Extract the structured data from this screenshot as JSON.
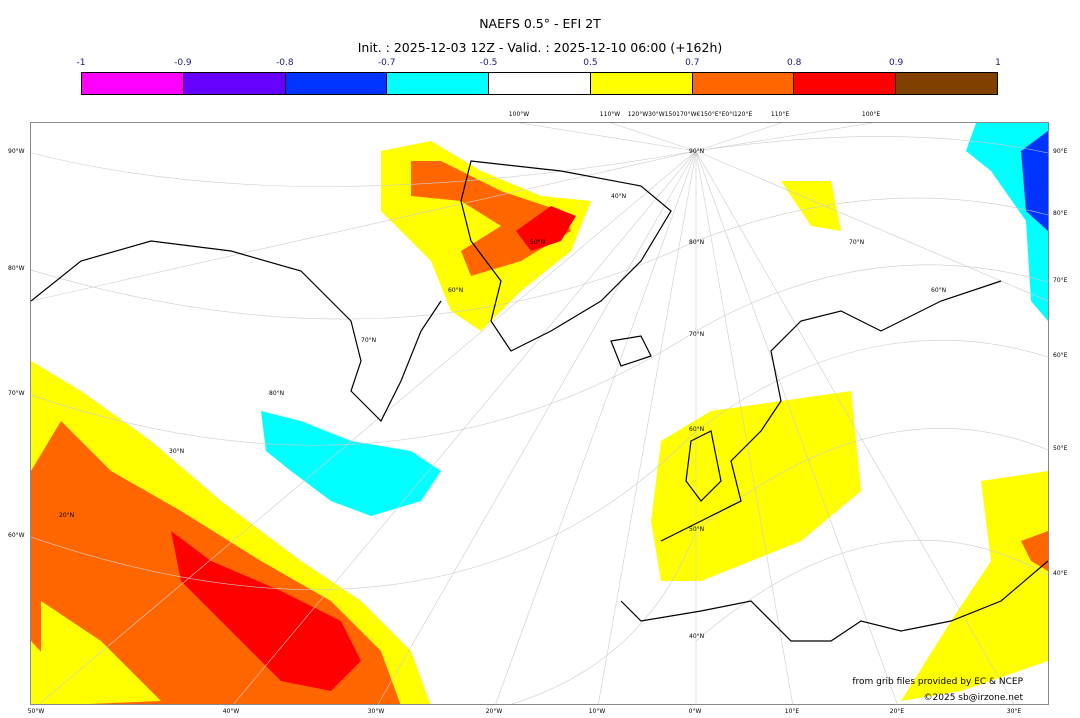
{
  "title": "NAEFS 0.5° - EFI 2T",
  "subtitle": "Init. : 2025-12-03 12Z - Valid. : 2025-12-10 06:00 (+162h)",
  "colorbar": {
    "ticks": [
      "-1",
      "-0.9",
      "-0.8",
      "-0.7",
      "-0.5",
      "0.5",
      "0.7",
      "0.8",
      "0.9",
      "1"
    ],
    "colors": [
      "#ff00ff",
      "#6600ff",
      "#0033ff",
      "#00ffff",
      "#ffffff",
      "#ffff00",
      "#ff6600",
      "#ff0000",
      "#804000"
    ]
  },
  "axes": {
    "left": [
      "90°W",
      "80°W",
      "70°W",
      "60°W"
    ],
    "right": [
      "90°E",
      "80°E",
      "70°E",
      "60°E",
      "50°E",
      "40°E"
    ],
    "bottom": [
      "50°W",
      "40°W",
      "30°W",
      "20°W",
      "10°W",
      "0°W",
      "10°E",
      "20°E",
      "30°E"
    ],
    "top": [
      "100°W",
      "110°W",
      "120°W30°W150170°W€150°E°E0°I120°E",
      "110°E",
      "100°E"
    ],
    "inner": [
      "90°N",
      "80°N",
      "70°N",
      "60°N",
      "50°N",
      "40°N",
      "30°N",
      "20°N",
      "80°N",
      "70°N",
      "60°N",
      "50°N",
      "40°N",
      "70°N",
      "60°N"
    ]
  },
  "credits": {
    "line1": "from grib files provided by EC & NCEP",
    "line2": "©2025 sb@irzone.net"
  }
}
